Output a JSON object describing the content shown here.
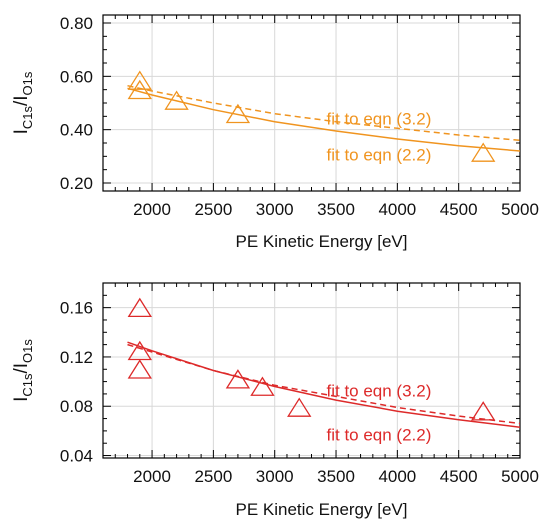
{
  "chart_data": [
    {
      "type": "scatter",
      "color": "#f0941f",
      "xlabel": "PE Kinetic Energy [eV]",
      "ylabel": {
        "main1": "I",
        "sub1": "C1s",
        "slash": "/I",
        "sub2": "O1s"
      },
      "xlim": [
        1600,
        5000
      ],
      "ylim": [
        0.17,
        0.83
      ],
      "xticks": [
        2000,
        2500,
        3000,
        3500,
        4000,
        4500,
        5000
      ],
      "yticks": [
        0.2,
        0.4,
        0.6,
        0.8
      ],
      "ytick_labels": [
        "0.20",
        "0.40",
        "0.60",
        "0.80"
      ],
      "grid": true,
      "points": [
        {
          "x": 1900,
          "y": 0.58
        },
        {
          "x": 1900,
          "y": 0.545
        },
        {
          "x": 2200,
          "y": 0.505
        },
        {
          "x": 2700,
          "y": 0.455
        },
        {
          "x": 4700,
          "y": 0.31
        }
      ],
      "fits": [
        {
          "label": "fit to eqn (3.2)",
          "style": "dashed",
          "x": [
            1800,
            2000,
            2500,
            3000,
            3500,
            4000,
            4500,
            5000
          ],
          "y": [
            0.565,
            0.545,
            0.5,
            0.46,
            0.43,
            0.405,
            0.38,
            0.36
          ]
        },
        {
          "label": "fit to eqn (2.2)",
          "style": "solid",
          "x": [
            1800,
            2000,
            2500,
            3000,
            3500,
            4000,
            4500,
            5000
          ],
          "y": [
            0.555,
            0.53,
            0.475,
            0.43,
            0.395,
            0.365,
            0.34,
            0.32
          ]
        }
      ],
      "annotations": [
        {
          "text": "fit to eqn (3.2)",
          "x": 3850,
          "y": 0.42
        },
        {
          "text": "fit to eqn (2.2)",
          "x": 3850,
          "y": 0.285
        }
      ]
    },
    {
      "type": "scatter",
      "color": "#dd2a2a",
      "xlabel": "PE Kinetic Energy [eV]",
      "ylabel": {
        "main1": "I",
        "sub1": "C1s",
        "slash": "/I",
        "sub2": "O1s"
      },
      "xlim": [
        1600,
        5000
      ],
      "ylim": [
        0.038,
        0.18
      ],
      "xticks": [
        2000,
        2500,
        3000,
        3500,
        4000,
        4500,
        5000
      ],
      "yticks": [
        0.04,
        0.08,
        0.12,
        0.16
      ],
      "ytick_labels": [
        "0.04",
        "0.08",
        "0.12",
        "0.16"
      ],
      "grid": true,
      "points": [
        {
          "x": 1900,
          "y": 0.159
        },
        {
          "x": 1900,
          "y": 0.124
        },
        {
          "x": 1900,
          "y": 0.109
        },
        {
          "x": 2700,
          "y": 0.101
        },
        {
          "x": 2900,
          "y": 0.095
        },
        {
          "x": 3200,
          "y": 0.078
        },
        {
          "x": 4700,
          "y": 0.075
        }
      ],
      "fits": [
        {
          "label": "fit to eqn (3.2)",
          "style": "dashed",
          "x": [
            1800,
            2000,
            2500,
            3000,
            3500,
            4000,
            4500,
            5000
          ],
          "y": [
            0.13,
            0.124,
            0.109,
            0.097,
            0.088,
            0.079,
            0.072,
            0.066
          ]
        },
        {
          "label": "fit to eqn (2.2)",
          "style": "solid",
          "x": [
            1800,
            2000,
            2500,
            3000,
            3500,
            4000,
            4500,
            5000
          ],
          "y": [
            0.132,
            0.125,
            0.109,
            0.096,
            0.085,
            0.076,
            0.069,
            0.063
          ]
        }
      ],
      "annotations": [
        {
          "text": "fit to eqn (3.2)",
          "x": 3850,
          "y": 0.088
        },
        {
          "text": "fit to eqn (2.2)",
          "x": 3850,
          "y": 0.052
        }
      ]
    }
  ]
}
